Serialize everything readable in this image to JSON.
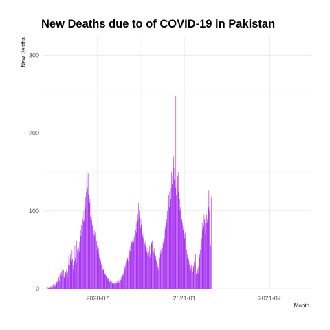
{
  "chart_data": {
    "type": "bar",
    "title": "New Deaths due to of COVID-19 in Pakistan",
    "xlabel": "Month",
    "ylabel": "New Deaths",
    "ylim": [
      0,
      325
    ],
    "xlim": [
      "2020-03-08",
      "2021-09-26"
    ],
    "yticks": [
      0,
      100,
      200,
      300
    ],
    "xticks": [
      {
        "label": "2020-07",
        "date": "2020-07-01"
      },
      {
        "label": "2021-01",
        "date": "2021-01-01"
      },
      {
        "label": "2021-07",
        "date": "2021-07-01"
      }
    ],
    "bar_color": "#a020f0",
    "grid": true,
    "start_date": "2020-03-18",
    "daily_values": [
      2,
      1,
      0,
      2,
      1,
      3,
      1,
      2,
      3,
      1,
      4,
      6,
      3,
      5,
      4,
      6,
      3,
      8,
      7,
      10,
      9,
      14,
      12,
      15,
      10,
      18,
      13,
      20,
      16,
      22,
      25,
      18,
      12,
      24,
      16,
      14,
      18,
      22,
      20,
      25,
      28,
      15,
      22,
      30,
      42,
      35,
      30,
      38,
      45,
      32,
      35,
      50,
      38,
      30,
      25,
      42,
      36,
      55,
      40,
      45,
      33,
      62,
      50,
      45,
      55,
      52,
      48,
      60,
      70,
      75,
      68,
      82,
      95,
      72,
      90,
      86,
      100,
      88,
      110,
      105,
      118,
      125,
      138,
      150,
      130,
      148,
      120,
      135,
      110,
      115,
      92,
      105,
      95,
      88,
      82,
      80,
      85,
      70,
      75,
      68,
      72,
      65,
      58,
      62,
      55,
      50,
      48,
      52,
      45,
      40,
      42,
      38,
      35,
      30,
      32,
      28,
      25,
      26,
      24,
      22,
      20,
      18,
      19,
      16,
      17,
      15,
      14,
      12,
      13,
      11,
      10,
      9,
      11,
      8,
      10,
      9,
      8,
      7,
      30,
      6,
      8,
      7,
      9,
      6,
      8,
      7,
      10,
      8,
      9,
      7,
      11,
      9,
      8,
      10,
      12,
      15,
      11,
      14,
      18,
      16,
      20,
      22,
      25,
      28,
      30,
      26,
      32,
      35,
      38,
      40,
      36,
      45,
      42,
      50,
      48,
      55,
      52,
      60,
      58,
      62,
      55,
      65,
      60,
      68,
      62,
      70,
      75,
      85,
      72,
      80,
      95,
      88,
      110,
      100,
      92,
      85,
      78,
      90,
      82,
      75,
      70,
      68,
      65,
      72,
      60,
      58,
      55,
      62,
      50,
      48,
      52,
      45,
      50,
      42,
      48,
      55,
      40,
      45,
      50,
      60,
      58,
      62,
      55,
      50,
      48,
      52,
      45,
      40,
      42,
      38,
      35,
      30,
      32,
      28,
      25,
      30,
      35,
      40,
      45,
      50,
      48,
      55,
      60,
      52,
      58,
      62,
      70,
      65,
      75,
      80,
      72,
      85,
      90,
      100,
      95,
      110,
      120,
      105,
      125,
      140,
      115,
      130,
      150,
      135,
      145,
      160,
      170,
      155,
      140,
      150,
      130,
      248,
      120,
      135,
      140,
      145,
      150,
      125,
      110,
      115,
      100,
      105,
      95,
      88,
      90,
      85,
      80,
      75,
      82,
      70,
      65,
      72,
      60,
      55,
      50,
      45,
      40,
      42,
      38,
      35,
      30,
      32,
      28,
      25,
      30,
      27,
      25,
      22,
      28,
      30,
      35,
      25,
      32,
      45,
      20,
      18,
      22,
      25,
      20,
      28,
      35,
      40,
      45,
      50,
      55,
      60,
      65,
      85,
      75,
      90,
      80,
      95,
      90,
      85,
      70,
      75,
      95,
      85,
      90,
      110,
      105,
      126,
      100,
      120,
      60,
      55,
      118
    ]
  }
}
